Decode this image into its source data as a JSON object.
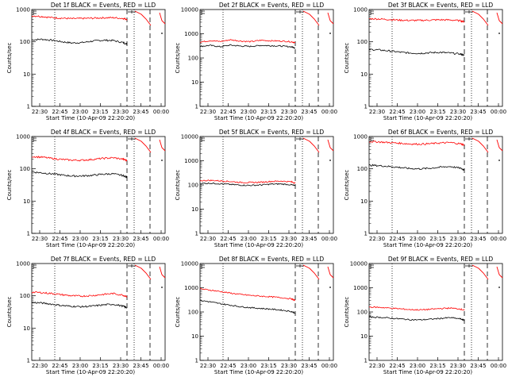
{
  "figure": {
    "ylabel": "Counts/sec",
    "xlabel": "Start Time (10-Apr-09 22:20:20)",
    "x_tick_labels": [
      "22:30",
      "22:45",
      "23:00",
      "23:15",
      "23:30",
      "23:45",
      "00:00"
    ],
    "y_tick_labels_small": [
      "1",
      "10",
      "100",
      "1000"
    ],
    "y_tick_labels_large": [
      "1",
      "10",
      "100",
      "1000",
      "10000"
    ]
  },
  "colors": {
    "events": "#000000",
    "lld": "#ff0000",
    "axis": "#000000"
  },
  "chart_data": [
    {
      "type": "line",
      "title": "Det 1f BLACK = Events, RED = LLD",
      "ylim": [
        1,
        1000
      ],
      "x_minutes": [
        0,
        100
      ],
      "series": [
        {
          "color": "black",
          "x": [
            0,
            10,
            20,
            30,
            40,
            50,
            60,
            70,
            80,
            90,
            94
          ],
          "y": [
            115,
            120,
            112,
            100,
            92,
            95,
            105,
            112,
            110,
            95,
            85
          ]
        },
        {
          "color": "red",
          "x": [
            0,
            10,
            20,
            30,
            40,
            50,
            60,
            70,
            80,
            90,
            94
          ],
          "y": [
            640,
            610,
            560,
            540,
            520,
            530,
            540,
            555,
            560,
            530,
            500
          ]
        }
      ]
    },
    {
      "type": "line",
      "title": "Det 2f BLACK = Events, RED = LLD",
      "ylim": [
        1,
        10000
      ],
      "x_minutes": [
        0,
        100
      ],
      "series": [
        {
          "color": "black",
          "x": [
            0,
            10,
            20,
            30,
            40,
            50,
            60,
            70,
            80,
            90,
            94
          ],
          "y": [
            300,
            330,
            290,
            340,
            310,
            300,
            330,
            320,
            310,
            290,
            260
          ]
        },
        {
          "color": "red",
          "x": [
            0,
            10,
            20,
            30,
            40,
            50,
            60,
            70,
            80,
            90,
            94
          ],
          "y": [
            450,
            520,
            480,
            560,
            500,
            470,
            540,
            510,
            500,
            470,
            430
          ]
        }
      ]
    },
    {
      "type": "line",
      "title": "Det 3f BLACK = Events, RED = LLD",
      "ylim": [
        1,
        1000
      ],
      "x_minutes": [
        0,
        100
      ],
      "series": [
        {
          "color": "black",
          "x": [
            0,
            10,
            20,
            30,
            40,
            50,
            60,
            70,
            80,
            90,
            94
          ],
          "y": [
            58,
            56,
            52,
            48,
            45,
            44,
            46,
            47,
            45,
            42,
            38
          ]
        },
        {
          "color": "red",
          "x": [
            0,
            10,
            20,
            30,
            40,
            50,
            60,
            70,
            80,
            90,
            94
          ],
          "y": [
            520,
            510,
            490,
            470,
            460,
            460,
            470,
            480,
            475,
            450,
            420
          ]
        }
      ]
    },
    {
      "type": "line",
      "title": "Det 4f BLACK = Events, RED = LLD",
      "ylim": [
        1,
        1000
      ],
      "x_minutes": [
        0,
        100
      ],
      "series": [
        {
          "color": "black",
          "x": [
            0,
            10,
            20,
            30,
            40,
            50,
            60,
            70,
            80,
            90,
            94
          ],
          "y": [
            80,
            75,
            70,
            64,
            60,
            60,
            63,
            68,
            70,
            62,
            55
          ]
        },
        {
          "color": "red",
          "x": [
            0,
            10,
            20,
            30,
            40,
            50,
            60,
            70,
            80,
            90,
            94
          ],
          "y": [
            240,
            230,
            210,
            195,
            185,
            185,
            195,
            210,
            220,
            200,
            180
          ]
        }
      ]
    },
    {
      "type": "line",
      "title": "Det 5f BLACK = Events, RED = LLD",
      "ylim": [
        1,
        10000
      ],
      "x_minutes": [
        0,
        100
      ],
      "series": [
        {
          "color": "black",
          "x": [
            0,
            10,
            20,
            30,
            40,
            50,
            60,
            70,
            80,
            90,
            94
          ],
          "y": [
            115,
            118,
            112,
            105,
            98,
            96,
            100,
            108,
            110,
            102,
            92
          ]
        },
        {
          "color": "red",
          "x": [
            0,
            10,
            20,
            30,
            40,
            50,
            60,
            70,
            80,
            90,
            94
          ],
          "y": [
            150,
            155,
            148,
            138,
            128,
            126,
            130,
            140,
            145,
            135,
            120
          ]
        }
      ]
    },
    {
      "type": "line",
      "title": "Det 6f BLACK = Events, RED = LLD",
      "ylim": [
        1,
        1000
      ],
      "x_minutes": [
        0,
        100
      ],
      "series": [
        {
          "color": "black",
          "x": [
            0,
            10,
            20,
            30,
            40,
            50,
            60,
            70,
            80,
            90,
            94
          ],
          "y": [
            130,
            125,
            118,
            110,
            102,
            100,
            104,
            112,
            118,
            105,
            92
          ]
        },
        {
          "color": "red",
          "x": [
            0,
            10,
            20,
            30,
            40,
            50,
            60,
            70,
            80,
            90,
            94
          ],
          "y": [
            700,
            680,
            650,
            620,
            590,
            580,
            600,
            630,
            650,
            600,
            550
          ]
        }
      ]
    },
    {
      "type": "line",
      "title": "Det 7f BLACK = Events, RED = LLD",
      "ylim": [
        1,
        1000
      ],
      "x_minutes": [
        0,
        100
      ],
      "series": [
        {
          "color": "black",
          "x": [
            0,
            10,
            20,
            30,
            40,
            50,
            60,
            70,
            80,
            90,
            94
          ],
          "y": [
            62,
            60,
            55,
            50,
            47,
            46,
            48,
            52,
            55,
            48,
            42
          ]
        },
        {
          "color": "red",
          "x": [
            0,
            10,
            20,
            30,
            40,
            50,
            60,
            70,
            80,
            90,
            94
          ],
          "y": [
            130,
            125,
            118,
            108,
            100,
            98,
            102,
            110,
            118,
            105,
            95
          ]
        }
      ]
    },
    {
      "type": "line",
      "title": "Det 8f BLACK = Events, RED = LLD",
      "ylim": [
        1,
        10000
      ],
      "x_minutes": [
        0,
        100
      ],
      "series": [
        {
          "color": "black",
          "x": [
            0,
            10,
            20,
            30,
            40,
            50,
            60,
            70,
            80,
            90,
            94
          ],
          "y": [
            300,
            260,
            220,
            190,
            165,
            150,
            140,
            130,
            120,
            105,
            90
          ]
        },
        {
          "color": "red",
          "x": [
            0,
            10,
            20,
            30,
            40,
            50,
            60,
            70,
            80,
            90,
            94
          ],
          "y": [
            900,
            800,
            700,
            600,
            530,
            480,
            450,
            420,
            390,
            350,
            300
          ]
        }
      ]
    },
    {
      "type": "line",
      "title": "Det 9f BLACK = Events, RED = LLD",
      "ylim": [
        1,
        10000
      ],
      "x_minutes": [
        0,
        100
      ],
      "series": [
        {
          "color": "black",
          "x": [
            0,
            10,
            20,
            30,
            40,
            50,
            60,
            70,
            80,
            90,
            94
          ],
          "y": [
            62,
            60,
            56,
            52,
            48,
            47,
            50,
            54,
            58,
            52,
            45
          ]
        },
        {
          "color": "red",
          "x": [
            0,
            10,
            20,
            30,
            40,
            50,
            60,
            70,
            80,
            90,
            94
          ],
          "y": [
            160,
            155,
            145,
            135,
            125,
            122,
            128,
            138,
            145,
            132,
            118
          ]
        }
      ]
    }
  ]
}
